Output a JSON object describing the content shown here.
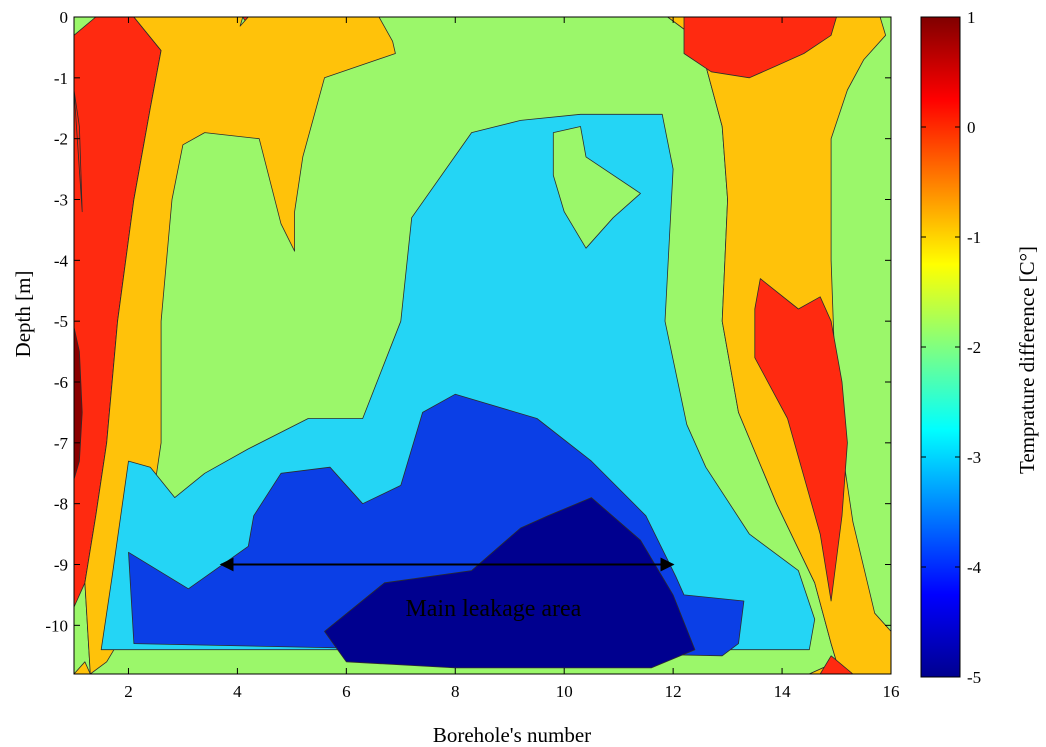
{
  "chart_data": {
    "type": "contour",
    "title": "",
    "xlabel": "Borehole's number",
    "ylabel": "Depth [m]",
    "xlim": [
      1,
      16
    ],
    "ylim": [
      -10.8,
      0
    ],
    "xticks": [
      2,
      4,
      6,
      8,
      10,
      12,
      14,
      16
    ],
    "yticks": [
      0,
      -1,
      -2,
      -3,
      -4,
      -5,
      -6,
      -7,
      -8,
      -9,
      -10
    ],
    "colorbar": {
      "label": "Temprature difference [C°]",
      "range": [
        -5,
        1
      ],
      "ticks": [
        1,
        0,
        -1,
        -2,
        -3,
        -4,
        -5
      ],
      "colormap": "jet"
    },
    "levels": [
      {
        "name": "-5",
        "color": "#00008f"
      },
      {
        "name": "-4",
        "color": "#0b3fe6"
      },
      {
        "name": "-3",
        "color": "#24d5f5"
      },
      {
        "name": "-2",
        "color": "#9bf76a"
      },
      {
        "name": "-1",
        "color": "#ffc20a"
      },
      {
        "name": "0",
        "color": "#ff2a10"
      },
      {
        "name": "1",
        "color": "#8a0000"
      }
    ],
    "regions": [
      {
        "level": "0",
        "points": [
          [
            1,
            -0.3
          ],
          [
            1.4,
            0
          ],
          [
            2.1,
            0
          ],
          [
            2.6,
            -0.55
          ],
          [
            2.4,
            -1.5
          ],
          [
            2.1,
            -3
          ],
          [
            1.8,
            -5
          ],
          [
            1.6,
            -7
          ],
          [
            1.4,
            -8.2
          ],
          [
            1.2,
            -9.3
          ],
          [
            1,
            -9.7
          ]
        ]
      },
      {
        "level": "0",
        "points": [
          [
            1,
            -1.2
          ],
          [
            1.1,
            -1.8
          ],
          [
            1.15,
            -3.2
          ]
        ]
      },
      {
        "level": "0",
        "points": [
          [
            3.9,
            0
          ],
          [
            4.2,
            0
          ],
          [
            4.05,
            -0.15
          ]
        ]
      },
      {
        "level": "1",
        "points": [
          [
            1,
            -5.1
          ],
          [
            1.1,
            -5.5
          ],
          [
            1.15,
            -6.5
          ],
          [
            1.1,
            -7.3
          ],
          [
            1,
            -7.6
          ]
        ]
      },
      {
        "level": "-2",
        "points": [
          [
            2.1,
            0
          ],
          [
            4.1,
            0
          ],
          [
            4.2,
            -0.15
          ],
          [
            4.4,
            0
          ],
          [
            9.7,
            0
          ],
          [
            11.9,
            0
          ],
          [
            12.5,
            -0.4
          ],
          [
            12.6,
            -0.8
          ],
          [
            12.9,
            -1.8
          ],
          [
            13,
            -3
          ],
          [
            12.9,
            -5
          ],
          [
            13.2,
            -6.5
          ],
          [
            13.9,
            -8
          ],
          [
            14.6,
            -9.3
          ],
          [
            14.9,
            -10.3
          ],
          [
            15,
            -10.6
          ],
          [
            14.5,
            -10.8
          ],
          [
            1.3,
            -10.8
          ],
          [
            1.2,
            -9.3
          ],
          [
            1.4,
            -8.2
          ],
          [
            1.6,
            -7
          ],
          [
            1.8,
            -5
          ],
          [
            2.1,
            -3
          ],
          [
            2.4,
            -1.5
          ],
          [
            2.6,
            -0.55
          ]
        ]
      },
      {
        "level": "-1",
        "points": [
          [
            2.1,
            0
          ],
          [
            4.1,
            0
          ],
          [
            4.05,
            -0.15
          ],
          [
            4.2,
            0
          ],
          [
            4.45,
            0
          ],
          [
            6.6,
            0
          ],
          [
            6.85,
            -0.4
          ],
          [
            6.9,
            -0.6
          ],
          [
            5.6,
            -1
          ],
          [
            5.2,
            -2.3
          ],
          [
            5.05,
            -3.2
          ],
          [
            5.05,
            -3.85
          ],
          [
            4.8,
            -3.4
          ],
          [
            4.4,
            -2
          ],
          [
            3.4,
            -1.9
          ],
          [
            3,
            -2.1
          ],
          [
            2.8,
            -3
          ],
          [
            2.6,
            -5
          ],
          [
            2.6,
            -7
          ],
          [
            2.4,
            -8.2
          ],
          [
            2,
            -9.5
          ],
          [
            1.8,
            -10.3
          ],
          [
            1.6,
            -10.6
          ],
          [
            1.3,
            -10.8
          ],
          [
            1.2,
            -9.3
          ],
          [
            1.4,
            -8.2
          ],
          [
            1.6,
            -7
          ],
          [
            1.8,
            -5
          ],
          [
            2.1,
            -3
          ],
          [
            2.4,
            -1.5
          ],
          [
            2.6,
            -0.55
          ]
        ]
      },
      {
        "level": "-1",
        "points": [
          [
            11.9,
            0
          ],
          [
            15.3,
            0
          ],
          [
            15.8,
            0
          ],
          [
            15.9,
            -0.3
          ],
          [
            15.5,
            -0.7
          ],
          [
            15.2,
            -1.2
          ],
          [
            14.9,
            -2
          ],
          [
            14.9,
            -4
          ],
          [
            15,
            -6.5
          ],
          [
            15.3,
            -8.3
          ],
          [
            15.7,
            -9.8
          ],
          [
            16,
            -10.1
          ],
          [
            16,
            -10.8
          ],
          [
            14.5,
            -10.8
          ],
          [
            15,
            -10.6
          ],
          [
            14.9,
            -10.3
          ],
          [
            14.6,
            -9.3
          ],
          [
            13.9,
            -8
          ],
          [
            13.2,
            -6.5
          ],
          [
            12.9,
            -5
          ],
          [
            13,
            -3
          ],
          [
            12.9,
            -1.8
          ],
          [
            12.6,
            -0.8
          ],
          [
            12.5,
            -0.4
          ]
        ]
      },
      {
        "level": "-1",
        "points": [
          [
            1,
            -10.8
          ],
          [
            1.3,
            -10.8
          ],
          [
            1.2,
            -10.6
          ]
        ]
      },
      {
        "level": "0",
        "points": [
          [
            12.2,
            0
          ],
          [
            15,
            0
          ],
          [
            14.9,
            -0.3
          ],
          [
            14.4,
            -0.6
          ],
          [
            13.9,
            -0.8
          ],
          [
            13.4,
            -1
          ],
          [
            12.7,
            -0.9
          ],
          [
            12.2,
            -0.6
          ]
        ]
      },
      {
        "level": "0",
        "points": [
          [
            13.6,
            -4.3
          ],
          [
            14.3,
            -4.8
          ],
          [
            14.7,
            -4.6
          ],
          [
            14.9,
            -5
          ],
          [
            15.1,
            -6
          ],
          [
            15.2,
            -7
          ],
          [
            15.1,
            -8.2
          ],
          [
            14.9,
            -9.6
          ],
          [
            14.7,
            -8.5
          ],
          [
            14.1,
            -6.6
          ],
          [
            13.5,
            -5.6
          ],
          [
            13.5,
            -4.8
          ]
        ]
      },
      {
        "level": "0",
        "points": [
          [
            14.7,
            -10.8
          ],
          [
            14.9,
            -10.5
          ],
          [
            15.3,
            -10.8
          ]
        ]
      },
      {
        "level": "-3",
        "points": [
          [
            2,
            -7.3
          ],
          [
            2.4,
            -7.4
          ],
          [
            2.85,
            -7.9
          ],
          [
            3.4,
            -7.5
          ],
          [
            4.2,
            -7.1
          ],
          [
            5.3,
            -6.6
          ],
          [
            6.3,
            -6.6
          ],
          [
            7,
            -5
          ],
          [
            7.2,
            -3.3
          ],
          [
            8.3,
            -1.9
          ],
          [
            9.2,
            -1.7
          ],
          [
            10.3,
            -1.6
          ],
          [
            11.8,
            -1.6
          ],
          [
            12,
            -2.5
          ],
          [
            11.85,
            -5
          ],
          [
            12.25,
            -6.7
          ],
          [
            12.6,
            -7.4
          ],
          [
            13.4,
            -8.5
          ],
          [
            14.3,
            -9.1
          ],
          [
            14.6,
            -9.9
          ],
          [
            14.5,
            -10.4
          ],
          [
            1.5,
            -10.4
          ],
          [
            1.7,
            -9.2
          ]
        ]
      },
      {
        "level": "-2",
        "points": [
          [
            9.8,
            -1.9
          ],
          [
            10.3,
            -1.8
          ],
          [
            10.4,
            -2.3
          ],
          [
            11.4,
            -2.9
          ],
          [
            10.9,
            -3.3
          ],
          [
            10.4,
            -3.8
          ],
          [
            10,
            -3.2
          ],
          [
            9.8,
            -2.6
          ]
        ]
      },
      {
        "level": "-4",
        "points": [
          [
            2,
            -8.8
          ],
          [
            3.1,
            -9.4
          ],
          [
            4.2,
            -8.7
          ],
          [
            4.3,
            -8.2
          ],
          [
            4.8,
            -7.5
          ],
          [
            5.7,
            -7.4
          ],
          [
            6.3,
            -8
          ],
          [
            7,
            -7.7
          ],
          [
            7.4,
            -6.5
          ],
          [
            8,
            -6.2
          ],
          [
            9.5,
            -6.6
          ],
          [
            10.5,
            -7.3
          ],
          [
            11.5,
            -8.2
          ],
          [
            12.05,
            -9.2
          ],
          [
            12.2,
            -9.5
          ],
          [
            13.3,
            -9.6
          ],
          [
            13.2,
            -10.3
          ],
          [
            12.9,
            -10.5
          ],
          [
            2.1,
            -10.3
          ]
        ]
      },
      {
        "level": "-5",
        "points": [
          [
            5.6,
            -10.1
          ],
          [
            6.7,
            -9.3
          ],
          [
            8.3,
            -9.1
          ],
          [
            9.2,
            -8.4
          ],
          [
            9.7,
            -8.2
          ],
          [
            10.5,
            -7.9
          ],
          [
            11.4,
            -8.6
          ],
          [
            12,
            -9.5
          ],
          [
            12.4,
            -10.4
          ],
          [
            11.6,
            -10.7
          ],
          [
            8,
            -10.7
          ],
          [
            6,
            -10.6
          ]
        ]
      }
    ],
    "annotations": [
      {
        "text": "Main leakage area",
        "x": 8.7,
        "y": -9.85
      },
      {
        "type": "double-arrow",
        "x1": 3.7,
        "x2": 12,
        "y": -9.0
      }
    ]
  }
}
